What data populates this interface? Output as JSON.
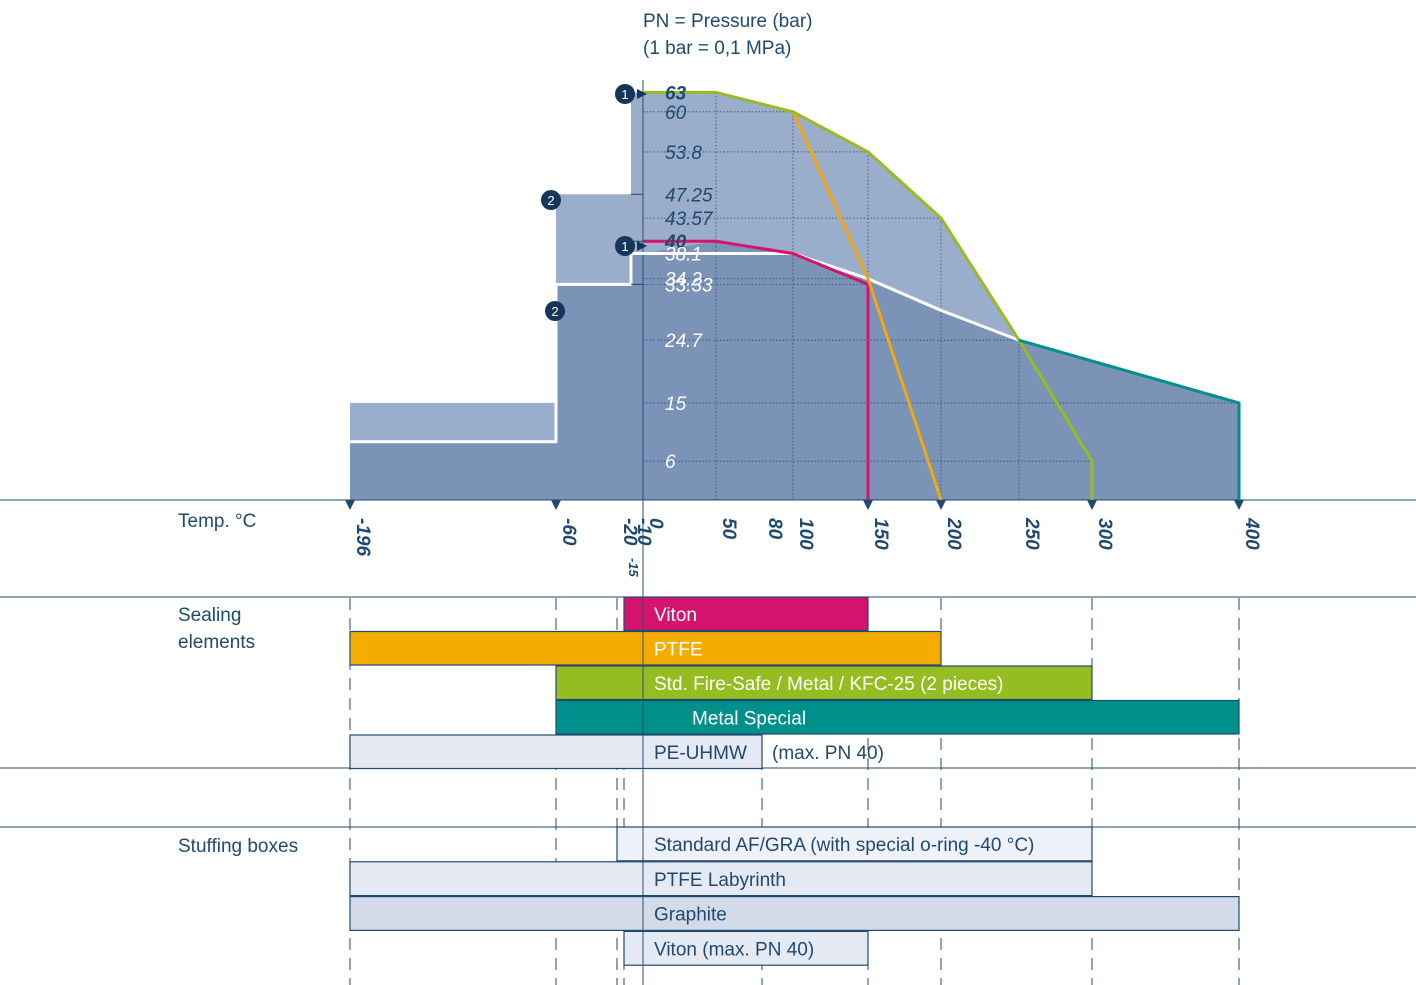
{
  "chart_data": {
    "type": "area",
    "ylabel": "PN = Pressure (bar)",
    "ylabel_note": "(1 bar = 0,1 MPa)",
    "xlabel": "Temp. °C",
    "x_ticks": [
      -196,
      -60,
      -20,
      -15,
      -10,
      0,
      50,
      80,
      100,
      150,
      200,
      250,
      300,
      400
    ],
    "y_ticks": [
      "63",
      "60",
      "53.8",
      "47.25",
      "43.57",
      "40",
      "38.1",
      "34.2",
      "33.33",
      "24.7",
      "15",
      "6"
    ],
    "y_ticks_bold": [
      "63",
      "40"
    ],
    "ylim": [
      0,
      63
    ],
    "grid": true,
    "badges": [
      "1",
      "2",
      "1",
      "2"
    ],
    "series": [
      {
        "color": "#9aaecb",
        "points": [
          [
            -196,
            15
          ],
          [
            -60,
            15
          ],
          [
            -60,
            47.25
          ],
          [
            -10,
            47.25
          ],
          [
            -10,
            63
          ],
          [
            50,
            63
          ],
          [
            100,
            60
          ],
          [
            150,
            53.8
          ],
          [
            200,
            43.57
          ],
          [
            250,
            24.7
          ],
          [
            400,
            15
          ],
          [
            400,
            0
          ],
          [
            -196,
            0
          ]
        ]
      },
      {
        "color": "#7a93b6",
        "points": [
          [
            -196,
            9
          ],
          [
            -60,
            9
          ],
          [
            -60,
            33.33
          ],
          [
            -10,
            33.33
          ],
          [
            -10,
            38.1
          ],
          [
            0,
            38.1
          ],
          [
            50,
            40
          ],
          [
            100,
            38.1
          ],
          [
            150,
            34.2
          ],
          [
            200,
            29.3
          ],
          [
            250,
            24.7
          ],
          [
            400,
            15
          ],
          [
            400,
            0
          ],
          [
            -196,
            0
          ]
        ]
      },
      {
        "color": "#ffffff",
        "points": [
          [
            -196,
            9
          ],
          [
            -60,
            9
          ],
          [
            -60,
            33.33
          ],
          [
            -10,
            33.33
          ],
          [
            -10,
            38.1
          ],
          [
            100,
            38.1
          ],
          [
            150,
            34.2
          ],
          [
            200,
            29.3
          ],
          [
            250,
            24.7
          ]
        ]
      },
      {
        "color": "#d4136f",
        "points": [
          [
            0,
            40
          ],
          [
            50,
            40
          ],
          [
            100,
            38.1
          ],
          [
            150,
            33.33
          ],
          [
            150,
            0
          ]
        ]
      },
      {
        "color": "#f3a712",
        "points": [
          [
            100,
            60
          ],
          [
            150,
            34.2
          ],
          [
            200,
            0
          ]
        ]
      },
      {
        "color": "#95bd21",
        "points": [
          [
            0,
            63
          ],
          [
            50,
            63
          ],
          [
            100,
            60
          ],
          [
            150,
            53.8
          ],
          [
            200,
            43.57
          ],
          [
            250,
            24.7
          ],
          [
            300,
            6
          ],
          [
            300,
            0
          ]
        ]
      },
      {
        "color": "#00908c",
        "points": [
          [
            250,
            24.7
          ],
          [
            400,
            15
          ],
          [
            400,
            0
          ]
        ]
      }
    ],
    "sections": [
      {
        "label_lines": [
          "Sealing",
          "elements"
        ],
        "bars": [
          {
            "label": "Viton",
            "from": -15,
            "to": 150,
            "color": "#d4136f",
            "text_color": "#ffffff"
          },
          {
            "label": "PTFE",
            "from": -196,
            "to": 200,
            "color": "#f5ac00",
            "text_color": "#ffffff"
          },
          {
            "label": "Std. Fire-Safe / Metal / KFC-25 (2 pieces)",
            "from": -60,
            "to": 300,
            "color": "#95bd21",
            "text_color": "#ffffff"
          },
          {
            "label": "Metal Special",
            "from": -60,
            "to": 400,
            "color": "#00908c",
            "text_color": "#ffffff",
            "align": "offset"
          },
          {
            "label": "PE-UHMW",
            "from": -196,
            "to": 80,
            "color": "#e4e9f3",
            "text_color": "#1f4a6e",
            "suffix": "(max. PN 40)"
          }
        ]
      },
      {
        "label_lines": [
          "Stuffing boxes"
        ],
        "bars": [
          {
            "label": "Standard AF/GRA (with special o-ring -40 °C)",
            "from": -20,
            "to": 300,
            "color": "#eef1f8",
            "text_color": "#1f4a6e"
          },
          {
            "label": "PTFE Labyrinth",
            "from": -196,
            "to": 300,
            "color": "#e4e9f3",
            "text_color": "#1f4a6e"
          },
          {
            "label": "Graphite",
            "from": -196,
            "to": 400,
            "color": "#d3dbe9",
            "text_color": "#1f4a6e"
          },
          {
            "label": "Viton (max. PN 40)",
            "from": -15,
            "to": 150,
            "color": "#e4e9f3",
            "text_color": "#1f4a6e"
          }
        ]
      }
    ]
  }
}
